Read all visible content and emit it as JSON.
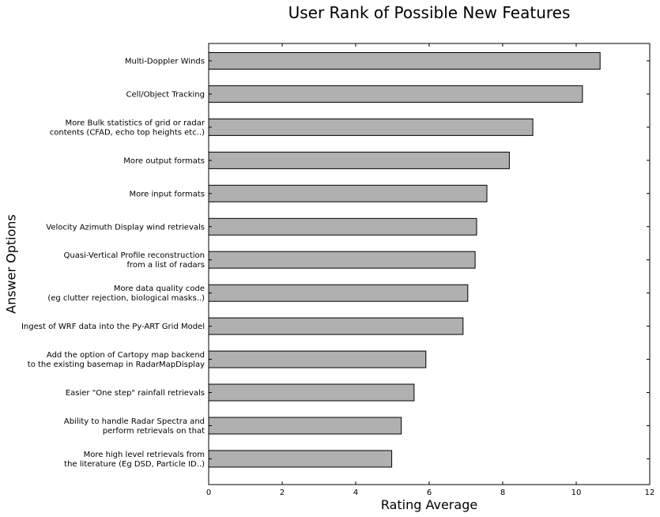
{
  "chart_data": {
    "type": "bar",
    "orientation": "horizontal",
    "title": "User Rank of Possible New Features",
    "xlabel": "Rating Average",
    "ylabel": "Answer Options",
    "xlim": [
      0,
      12
    ],
    "xticks": [
      0,
      2,
      4,
      6,
      8,
      10,
      12
    ],
    "grid": false,
    "bar_color": "#b0b0b0",
    "categories": [
      [
        "Multi-Doppler Winds"
      ],
      [
        "Cell/Object Tracking"
      ],
      [
        "More Bulk statistics of grid or radar",
        "contents (CFAD, echo top heights etc..)"
      ],
      [
        "More output formats"
      ],
      [
        "More input formats"
      ],
      [
        "Velocity Azimuth Display wind retrievals"
      ],
      [
        "Quasi-Vertical Profile reconstruction",
        "from a list of radars"
      ],
      [
        "More data quality code",
        "(eg clutter rejection, biological masks..)"
      ],
      [
        "Ingest of WRF data into the Py-ART Grid Model"
      ],
      [
        "Add the option of Cartopy map backend",
        "to the existing basemap in RadarMapDisplay"
      ],
      [
        "Easier \"One step\" rainfall retrievals"
      ],
      [
        "Ability to handle Radar Spectra and",
        "perform retrievals on that"
      ],
      [
        "More high level retrievals from",
        "the literature (Eg DSD, Particle ID..)"
      ]
    ],
    "values": [
      10.65,
      10.17,
      8.82,
      8.18,
      7.57,
      7.29,
      7.25,
      7.05,
      6.92,
      5.91,
      5.59,
      5.24,
      4.98
    ]
  }
}
